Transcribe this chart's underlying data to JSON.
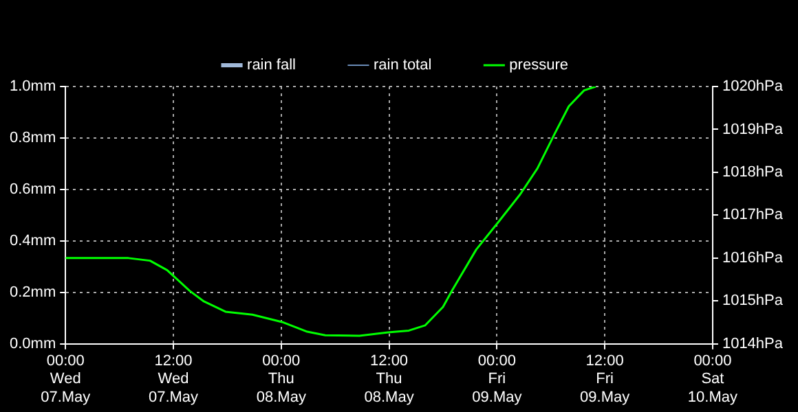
{
  "chart_data": {
    "type": "line",
    "xlim": [
      "--05-07T00:00",
      "--05-10T00:00"
    ],
    "xticks": [
      {
        "value": "--05-07T00:00",
        "label": "00:00\nWed\n07.May"
      },
      {
        "value": "--05-07T12:00",
        "label": "12:00\nWed\n07.May"
      },
      {
        "value": "--05-08T00:00",
        "label": "00:00\nThu\n08.May"
      },
      {
        "value": "--05-08T12:00",
        "label": "12:00\nThu\n08.May"
      },
      {
        "value": "--05-09T00:00",
        "label": "00:00\nFri\n09.May"
      },
      {
        "value": "--05-09T12:00",
        "label": "12:00\nFri\n09.May"
      },
      {
        "value": "--05-10T00:00",
        "label": "00:00\nSat\n10.May"
      }
    ],
    "ylim": [
      0,
      1
    ],
    "yticks": [
      {
        "value": 0,
        "label": "0.0mm"
      },
      {
        "value": 0.2,
        "label": "0.2mm"
      },
      {
        "value": 0.4,
        "label": "0.4mm"
      },
      {
        "value": 0.6,
        "label": "0.6mm"
      },
      {
        "value": 0.8,
        "label": "0.8mm"
      },
      {
        "value": 1,
        "label": "1.0mm"
      }
    ],
    "y2lim": [
      1014,
      1020
    ],
    "y2ticks": [
      {
        "value": 1014,
        "label": "1014hPa"
      },
      {
        "value": 1015,
        "label": "1015hPa"
      },
      {
        "value": 1016,
        "label": "1016hPa"
      },
      {
        "value": 1017,
        "label": "1017hPa"
      },
      {
        "value": 1018,
        "label": "1018hPa"
      },
      {
        "value": 1019,
        "label": "1019hPa"
      },
      {
        "value": 1020,
        "label": "1020hPa"
      }
    ],
    "grid": true,
    "legend": "top",
    "series": [
      {
        "name": "rain fall",
        "color": "#a0b8d8"
      },
      {
        "name": "rain total",
        "color": "#6a8cb8"
      },
      {
        "name": "pressure",
        "color": "#00ff00",
        "axis": "y2",
        "x": [
          "--05-07T00:00",
          "--05-07T07:00",
          "--05-07T09:24",
          "--05-07T11:18",
          "--05-07T13:48",
          "--05-07T15:24",
          "--05-07T17:48",
          "--05-07T20:48",
          "--05-08T00:06",
          "--05-08T02:48",
          "--05-08T04:54",
          "--05-08T08:42",
          "--05-08T11:54",
          "--05-08T14:12",
          "--05-08T16:00",
          "--05-08T18:00",
          "--05-08T19:00",
          "--05-08T21:42",
          "--05-09T00:12",
          "--05-09T02:36",
          "--05-09T04:30",
          "--05-09T06:24",
          "--05-09T08:00",
          "--05-09T09:42",
          "--05-09T11:00"
        ],
        "values": [
          1016.0,
          1016.0,
          1015.94,
          1015.72,
          1015.24,
          1014.99,
          1014.75,
          1014.68,
          1014.51,
          1014.29,
          1014.2,
          1014.19,
          1014.27,
          1014.31,
          1014.43,
          1014.86,
          1015.24,
          1016.2,
          1016.85,
          1017.49,
          1018.09,
          1018.89,
          1019.54,
          1019.91,
          1020.0
        ]
      }
    ]
  }
}
